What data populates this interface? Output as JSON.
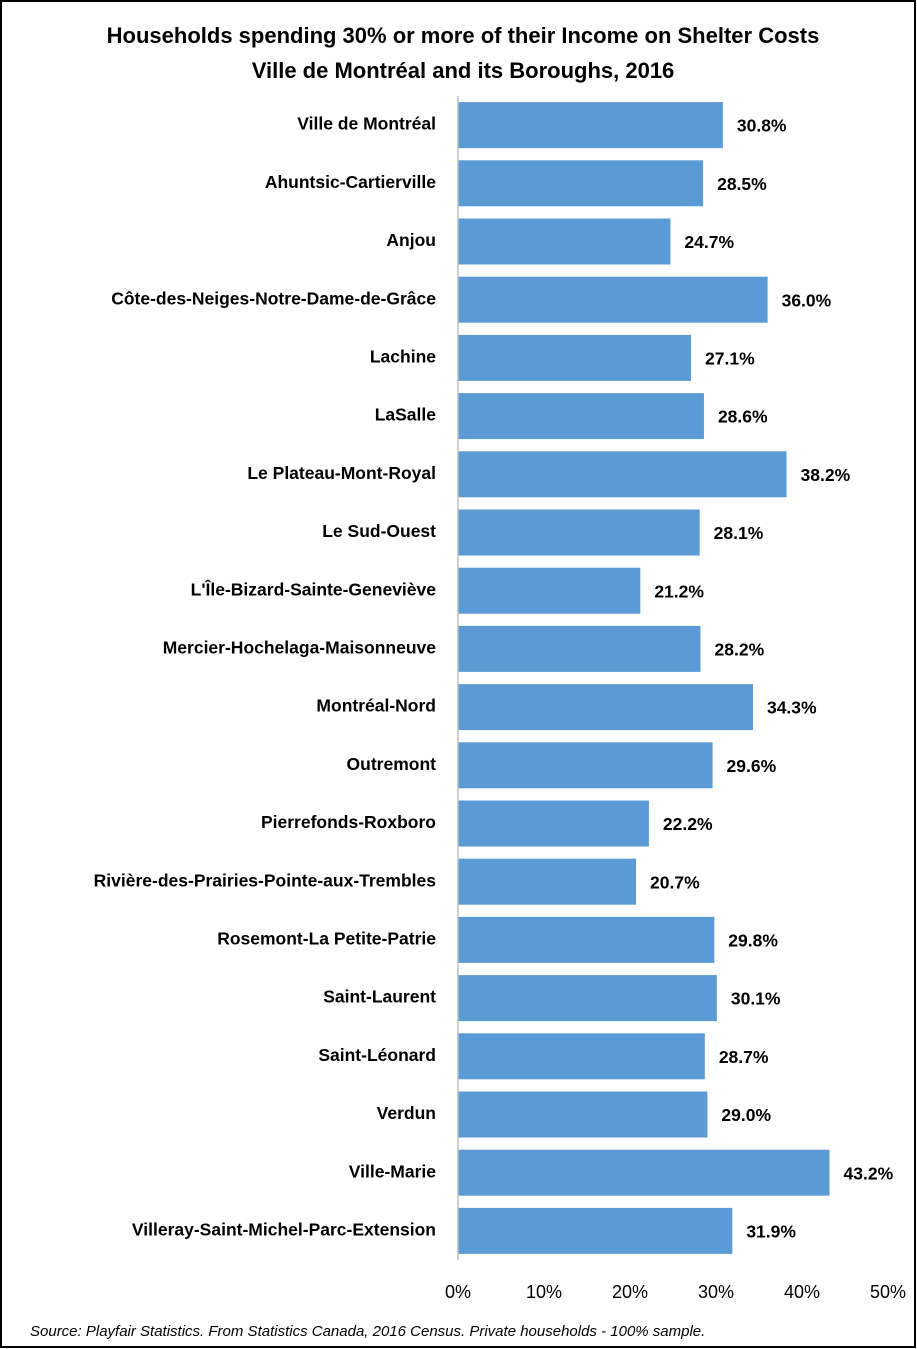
{
  "chart_data": {
    "type": "barh",
    "title": "Households spending 30% or more of their Income on Shelter Costs",
    "subtitle": "Ville de Montréal and its Boroughs, 2016",
    "source": "Source: Playfair Statistics. From Statistics Canada, 2016 Census. Private households - 100% sample.",
    "categories": [
      "Ville de Montréal",
      "Ahuntsic-Cartierville",
      "Anjou",
      "Côte-des-Neiges-Notre-Dame-de-Grâce",
      "Lachine",
      "LaSalle",
      "Le Plateau-Mont-Royal",
      "Le Sud-Ouest",
      "L'Île-Bizard-Sainte-Geneviève",
      "Mercier-Hochelaga-Maisonneuve",
      "Montréal-Nord",
      "Outremont",
      "Pierrefonds-Roxboro",
      "Rivière-des-Prairies-Pointe-aux-Trembles",
      "Rosemont-La Petite-Patrie",
      "Saint-Laurent",
      "Saint-Léonard",
      "Verdun",
      "Ville-Marie",
      "Villeray-Saint-Michel-Parc-Extension"
    ],
    "values": [
      30.8,
      28.5,
      24.7,
      36.0,
      27.1,
      28.6,
      38.2,
      28.1,
      21.2,
      28.2,
      34.3,
      29.6,
      22.2,
      20.7,
      29.8,
      30.1,
      28.7,
      29.0,
      43.2,
      31.9
    ],
    "value_labels": [
      "30.8%",
      "28.5%",
      "24.7%",
      "36.0%",
      "27.1%",
      "28.6%",
      "38.2%",
      "28.1%",
      "21.2%",
      "28.2%",
      "34.3%",
      "29.6%",
      "22.2%",
      "20.7%",
      "29.8%",
      "30.1%",
      "28.7%",
      "29.0%",
      "43.2%",
      "31.9%"
    ],
    "color": "#5b9bd5",
    "xlim": [
      0,
      50
    ],
    "xticks": [
      {
        "value": 0,
        "label": "0%"
      },
      {
        "value": 10,
        "label": "10%"
      },
      {
        "value": 20,
        "label": "20%"
      },
      {
        "value": 30,
        "label": "30%"
      },
      {
        "value": 40,
        "label": "40%"
      },
      {
        "value": 50,
        "label": "50%"
      }
    ]
  }
}
